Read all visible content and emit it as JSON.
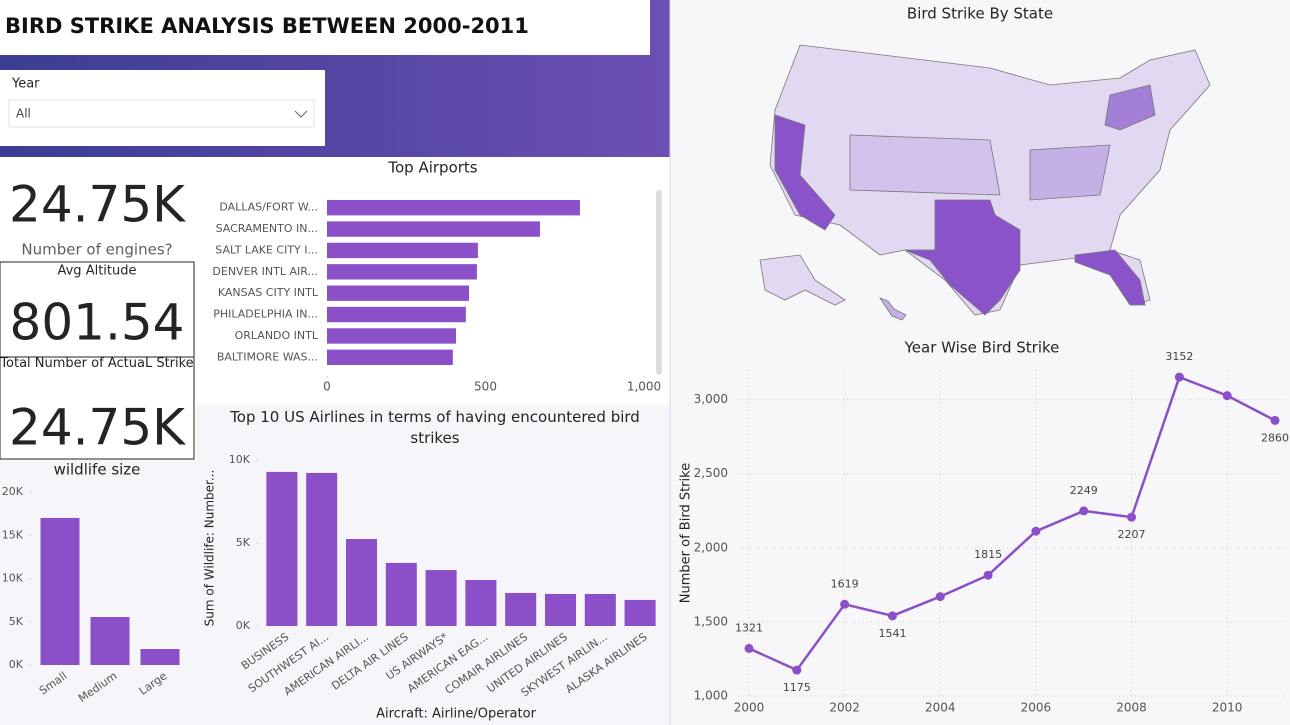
{
  "header": {
    "title": "BIRD STRIKE ANALYSIS BETWEEN 2000-2011"
  },
  "slicer": {
    "label": "Year",
    "value": "All"
  },
  "cards": [
    {
      "value": "24.75K",
      "label": "Number of engines?"
    },
    {
      "value": "801.54",
      "label": "Avg Altitude"
    },
    {
      "value": "24.75K",
      "label": "Total Number of ActuaL Strike"
    }
  ],
  "map": {
    "title": "Bird Strike By State"
  },
  "chart_data": [
    {
      "type": "hbar",
      "title": "Top Airports",
      "categories": [
        "DALLAS/FORT W...",
        "SACRAMENTO IN...",
        "SALT LAKE CITY I...",
        "DENVER INTL AIR...",
        "KANSAS CITY INTL",
        "PHILADELPHIA IN...",
        "ORLANDO INTL",
        "BALTIMORE WAS..."
      ],
      "values": [
        798,
        672,
        476,
        473,
        448,
        438,
        407,
        397
      ],
      "color": "#8b4fc8",
      "xlim": [
        0,
        1000
      ],
      "xticks": [
        0,
        500,
        {
          "value": 1000,
          "label": "1,000"
        }
      ],
      "grid": false
    },
    {
      "type": "bar",
      "title": "Top 10 US Airlines in terms of having encountered bird strikes",
      "x_label": "Aircraft: Airline/Operator",
      "y_label": "Sum of Wildlife: Number...",
      "categories": [
        "BUSINESS",
        "SOUTHWEST AI...",
        "AMERICAN AIRLI...",
        "DELTA AIR LINES",
        "US AIRWAYS*",
        "AMERICAN EAG...",
        "COMAIR AIRLINES",
        "UNITED AIRLINES",
        "SKYWEST AIRLIN...",
        "ALASKA AIRLINES"
      ],
      "values": [
        9280,
        9220,
        5240,
        3800,
        3370,
        2770,
        1990,
        1930,
        1930,
        1570
      ],
      "color": "#8b4fc8",
      "ylim": [
        0,
        10000
      ],
      "yticks": [
        {
          "value": 0,
          "label": "0K"
        },
        {
          "value": 5000,
          "label": "5K"
        },
        {
          "value": 10000,
          "label": "10K"
        }
      ],
      "grid": false
    },
    {
      "type": "bar",
      "title": "wildlife size",
      "categories": [
        "Small",
        "Medium",
        "Large"
      ],
      "values": [
        17000,
        5550,
        1850
      ],
      "color": "#8b4fc8",
      "ylim": [
        0,
        20000
      ],
      "yticks": [
        {
          "value": 0,
          "label": "0K"
        },
        {
          "value": 5000,
          "label": "5K"
        },
        {
          "value": 10000,
          "label": "10K"
        },
        {
          "value": 15000,
          "label": "15K"
        },
        {
          "value": 20000,
          "label": "20K"
        }
      ],
      "grid": false
    },
    {
      "type": "line",
      "title": "Year Wise Bird Strike",
      "y_label": "Number of Bird Strike",
      "x": [
        2000,
        2001,
        2002,
        2003,
        2004,
        2005,
        2006,
        2007,
        2008,
        2009,
        2010,
        2011
      ],
      "values": [
        1321,
        1175,
        1619,
        1541,
        1671,
        1815,
        2112,
        2249,
        2207,
        3152,
        3027,
        2860
      ],
      "value_labels": [
        1321,
        1175,
        1619,
        1541,
        null,
        1815,
        null,
        2249,
        2207,
        3152,
        null,
        2860
      ],
      "color": "#8b4fc8",
      "xlim": [
        2000,
        2011
      ],
      "xticks": [
        2000,
        2002,
        2004,
        2006,
        2008,
        2010
      ],
      "ylim": [
        1000,
        3200
      ],
      "yticks": [
        {
          "value": 1000,
          "label": "1,000"
        },
        {
          "value": 1500,
          "label": "1,500"
        },
        {
          "value": 2000,
          "label": "2,000"
        },
        {
          "value": 2500,
          "label": "2,500"
        },
        {
          "value": 3000,
          "label": "3,000"
        }
      ],
      "grid": true
    }
  ]
}
